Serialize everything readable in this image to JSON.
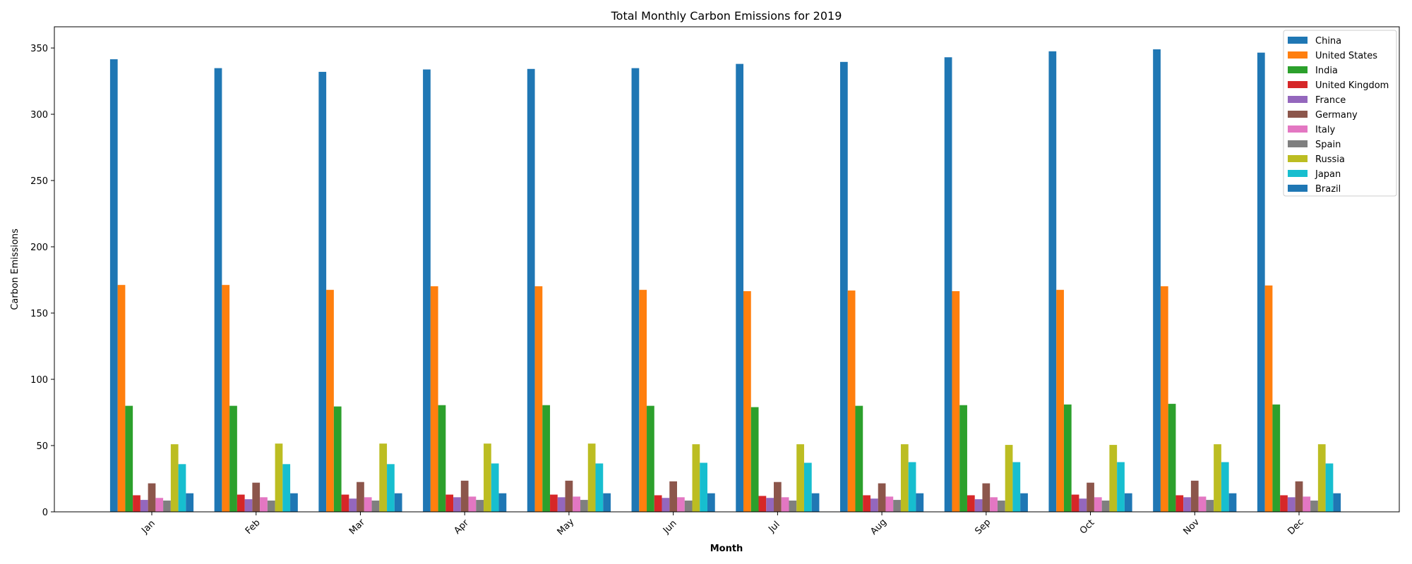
{
  "chart_data": {
    "type": "bar",
    "title": "Total Monthly Carbon Emissions for 2019",
    "xlabel": "Month",
    "ylabel": "Carbon Emissions",
    "ylim": [
      0,
      366
    ],
    "yticks": [
      0,
      50,
      100,
      150,
      200,
      250,
      300,
      350
    ],
    "categories": [
      "Jan",
      "Feb",
      "Mar",
      "Apr",
      "May",
      "Jun",
      "Jul",
      "Aug",
      "Sep",
      "Oct",
      "Nov",
      "Dec"
    ],
    "legend_position": "top-right",
    "grid": false,
    "series": [
      {
        "name": "China",
        "color": "#1f77b4",
        "values": [
          341.5,
          334.8,
          332.0,
          333.8,
          334.2,
          334.8,
          338.0,
          339.5,
          343.0,
          347.5,
          349.0,
          346.5
        ]
      },
      {
        "name": "United States",
        "color": "#ff7f0e",
        "values": [
          171.2,
          171.2,
          167.5,
          170.2,
          170.2,
          167.5,
          166.5,
          167.0,
          166.5,
          167.5,
          170.2,
          170.8
        ]
      },
      {
        "name": "India",
        "color": "#2ca02c",
        "values": [
          80.0,
          80.0,
          79.5,
          80.5,
          80.5,
          80.0,
          79.0,
          80.0,
          80.5,
          81.0,
          81.5,
          81.0
        ]
      },
      {
        "name": "United Kingdom",
        "color": "#d62728",
        "values": [
          12.5,
          13.0,
          13.0,
          13.0,
          13.0,
          12.5,
          12.0,
          12.5,
          12.5,
          13.0,
          12.5,
          12.5
        ]
      },
      {
        "name": "France",
        "color": "#9467bd",
        "values": [
          9.0,
          9.5,
          10.0,
          11.0,
          11.0,
          10.5,
          10.5,
          10.0,
          9.5,
          10.0,
          11.0,
          11.0
        ]
      },
      {
        "name": "Germany",
        "color": "#8c564b",
        "values": [
          21.5,
          22.0,
          22.5,
          23.5,
          23.5,
          23.0,
          22.5,
          21.5,
          21.5,
          22.0,
          23.5,
          23.0
        ]
      },
      {
        "name": "Italy",
        "color": "#e377c2",
        "values": [
          10.5,
          11.0,
          11.0,
          11.5,
          11.5,
          11.0,
          11.0,
          11.5,
          11.0,
          11.0,
          11.5,
          11.5
        ]
      },
      {
        "name": "Spain",
        "color": "#7f7f7f",
        "values": [
          8.5,
          8.5,
          8.5,
          9.0,
          9.0,
          8.5,
          8.5,
          9.0,
          8.5,
          8.5,
          9.0,
          8.5
        ]
      },
      {
        "name": "Russia",
        "color": "#bcbd22",
        "values": [
          51.0,
          51.5,
          51.5,
          51.5,
          51.5,
          51.0,
          51.0,
          51.0,
          50.5,
          50.5,
          51.0,
          51.0
        ]
      },
      {
        "name": "Japan",
        "color": "#17becf",
        "values": [
          36.0,
          36.0,
          36.0,
          36.5,
          36.5,
          37.0,
          37.0,
          37.5,
          37.5,
          37.5,
          37.5,
          36.5
        ]
      },
      {
        "name": "Brazil",
        "color": "#1f77b4",
        "values": [
          14.0,
          14.0,
          14.0,
          14.0,
          14.0,
          14.0,
          14.0,
          14.0,
          14.0,
          14.0,
          14.0,
          14.0
        ]
      }
    ]
  }
}
